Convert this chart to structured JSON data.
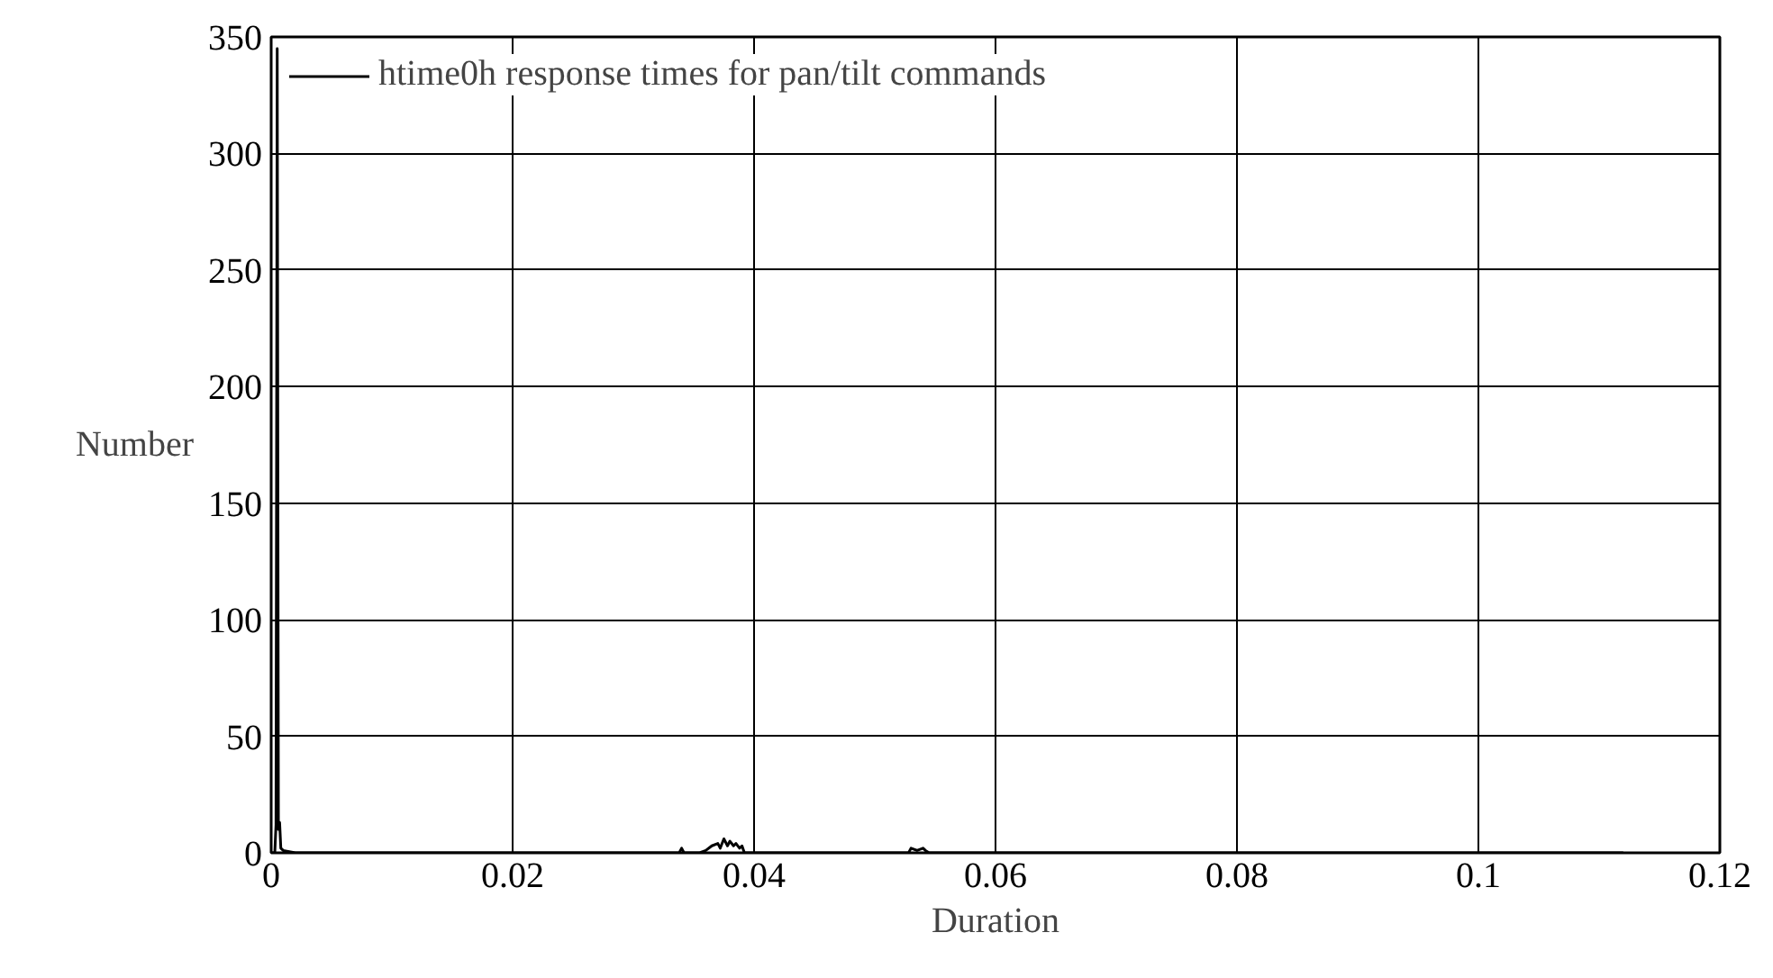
{
  "chart_data": {
    "type": "line",
    "xlabel": "Duration",
    "ylabel": "Number",
    "series": [
      {
        "name": "htime0h response times for pan/tilt commands",
        "color": "#000000",
        "x": [
          0,
          0.0003,
          0.0004,
          0.0005,
          0.0006,
          0.0007,
          0.0008,
          0.001,
          0.002,
          0.01,
          0.02,
          0.03,
          0.0338,
          0.034,
          0.0342,
          0.0355,
          0.036,
          0.0365,
          0.037,
          0.0372,
          0.0375,
          0.0378,
          0.038,
          0.0383,
          0.0385,
          0.0388,
          0.039,
          0.0392,
          0.045,
          0.0528,
          0.053,
          0.0535,
          0.054,
          0.0542,
          0.0545,
          0.06,
          0.08,
          0.1,
          0.112
        ],
        "values": [
          0,
          0,
          12,
          345,
          10,
          13,
          2,
          1,
          0,
          0,
          0,
          0,
          0,
          2,
          0,
          0,
          1,
          3,
          4,
          2,
          6,
          3,
          5,
          3,
          4,
          2,
          3,
          0,
          0,
          0,
          2,
          1,
          2,
          1,
          0,
          0,
          0,
          0,
          0
        ]
      }
    ],
    "xlim": [
      0,
      0.12
    ],
    "ylim": [
      0,
      350
    ],
    "xticks": [
      0,
      0.02,
      0.04,
      0.06,
      0.08,
      0.1,
      0.12
    ],
    "yticks": [
      0,
      50,
      100,
      150,
      200,
      250,
      300,
      350
    ],
    "grid": true,
    "legend": "top left",
    "marker": "none",
    "line_style": "solid"
  }
}
